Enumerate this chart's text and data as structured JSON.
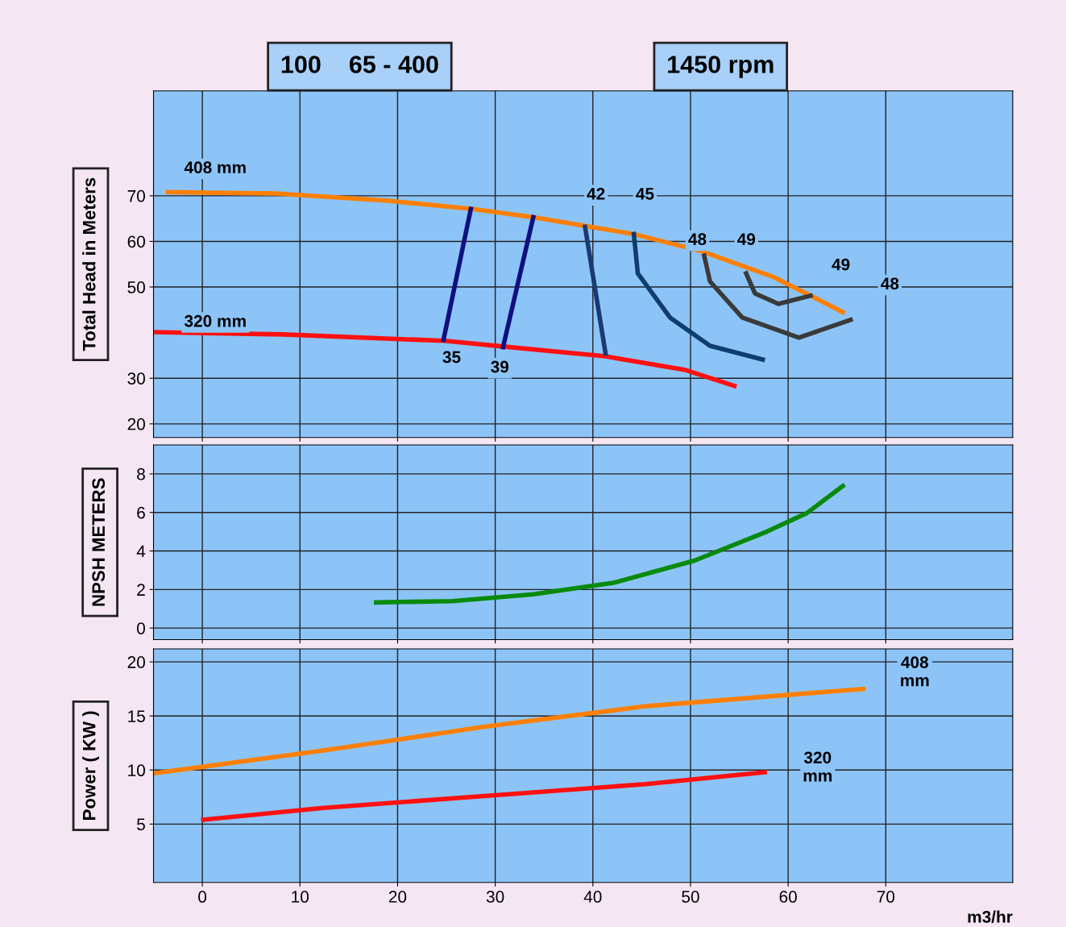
{
  "chart_data": [
    {
      "type": "line",
      "title": "100    65 - 400",
      "subtitle": "1450 rpm",
      "ylabel": "Total Head in Meters",
      "xlim": [
        -5,
        83
      ],
      "xticks": [
        0,
        10,
        20,
        30,
        40,
        50,
        60,
        70
      ],
      "ylim": [
        17,
        93
      ],
      "yticks": [
        20,
        30,
        50,
        60,
        70
      ],
      "tick_labels": "y",
      "grid": true,
      "marker": "none",
      "line_style": "solid",
      "series": [
        {
          "color": "#ff7f00",
          "x": [
            -3.5,
            7.5,
            19,
            27.7,
            33.9,
            44.2,
            51.2,
            58.6,
            65.6
          ],
          "values": [
            70.8,
            70.5,
            68.9,
            67.1,
            65.3,
            61.6,
            57.8,
            52.1,
            44.5
          ]
        },
        {
          "color": "#ff1010",
          "x": [
            -4.9,
            8.3,
            24.8,
            30.6,
            41.3,
            49.5,
            54.5
          ],
          "values": [
            40.1,
            39.6,
            38.2,
            37.0,
            34.8,
            31.8,
            28.3
          ]
        },
        {
          "color": "#101080",
          "x": [
            27.5,
            24.7
          ],
          "values": [
            67.1,
            38.4
          ]
        },
        {
          "color": "#101080",
          "x": [
            33.9,
            30.8
          ],
          "values": [
            65.3,
            36.8
          ]
        },
        {
          "color": "#1a3a70",
          "x": [
            39.2,
            41.3
          ],
          "values": [
            63.2,
            35.4
          ]
        },
        {
          "color": "#0f3d6e",
          "x": [
            44.2,
            44.6,
            47.9,
            52,
            57.4
          ],
          "values": [
            61.6,
            53,
            43.3,
            37.1,
            34.1
          ]
        },
        {
          "color": "#3a3a3a",
          "x": [
            51.4,
            52,
            55.3,
            61.1,
            66.4
          ],
          "values": [
            56.9,
            51.2,
            43.3,
            38.9,
            42.8
          ]
        },
        {
          "color": "#3a3a3a",
          "x": [
            55.7,
            56.6,
            59,
            62.3
          ],
          "values": [
            53,
            48.6,
            46.3,
            48.1
          ]
        }
      ],
      "annotations": [
        "408 mm",
        "320 mm",
        "35",
        "39",
        "42",
        "45",
        "48",
        "49",
        "49",
        "48"
      ]
    },
    {
      "type": "line",
      "ylabel": "NPSH METERS",
      "xlim": [
        -5,
        83
      ],
      "xticks": [
        0,
        10,
        20,
        30,
        40,
        50,
        60,
        70
      ],
      "ylim": [
        -0.6,
        9.5
      ],
      "yticks": [
        0,
        2,
        4,
        6,
        8
      ],
      "tick_labels": "y",
      "grid": true,
      "marker": "none",
      "line_style": "solid",
      "series": [
        {
          "color": "#0a8a0a",
          "x": [
            17.8,
            25.6,
            33.9,
            42.1,
            50.4,
            57.8,
            61.9,
            65.6
          ],
          "values": [
            1.33,
            1.4,
            1.75,
            2.35,
            3.5,
            5.0,
            5.96,
            7.37
          ]
        }
      ]
    },
    {
      "type": "line",
      "ylabel": "Power ( KW )",
      "xlabel": "m3/hr",
      "xlim": [
        -5,
        83
      ],
      "xticks": [
        0,
        10,
        20,
        30,
        40,
        50,
        60,
        70
      ],
      "ylim": [
        -0.4,
        21.2
      ],
      "yticks": [
        5,
        10,
        15,
        20
      ],
      "grid": true,
      "marker": "none",
      "line_style": "solid",
      "series": [
        {
          "color": "#ff7f00",
          "x": [
            -4.9,
            12.4,
            28.9,
            45.4,
            67.7
          ],
          "values": [
            9.7,
            11.8,
            14.0,
            15.9,
            17.5
          ]
        },
        {
          "color": "#ff1010",
          "x": [
            0.1,
            12.4,
            28.9,
            45.4,
            57.6
          ],
          "values": [
            5.4,
            6.5,
            7.6,
            8.7,
            9.8
          ]
        }
      ],
      "annotations": [
        "408\nmm",
        "320\nmm"
      ]
    }
  ]
}
